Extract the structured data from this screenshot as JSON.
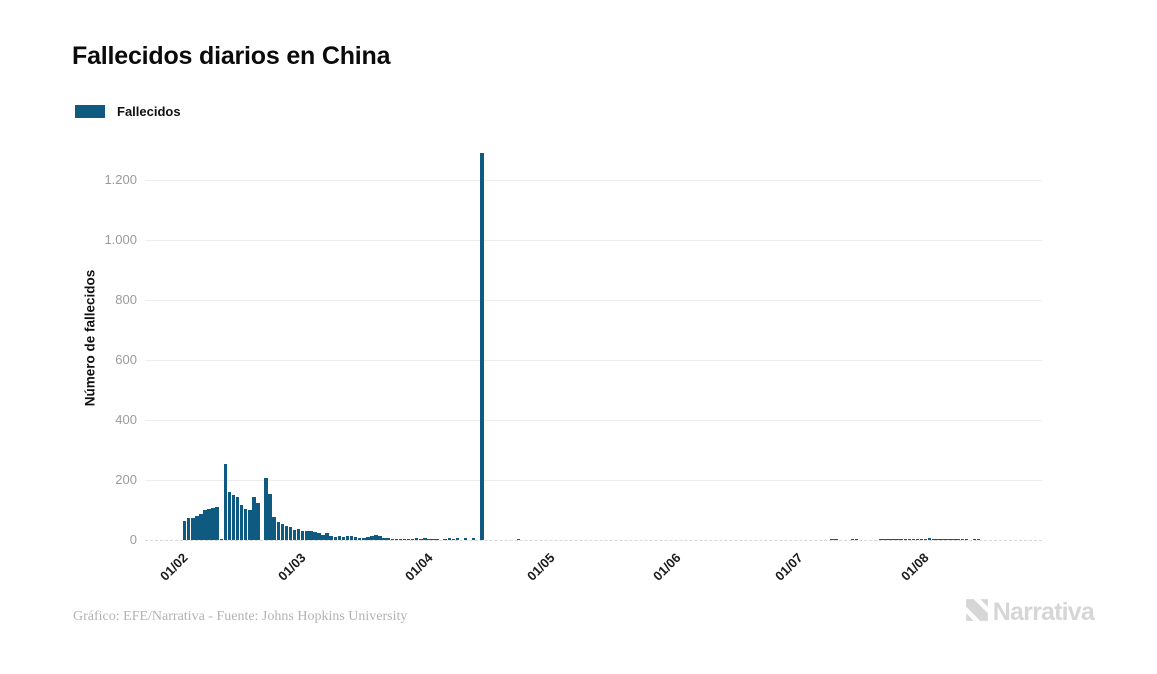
{
  "header": {
    "title": "Fallecidos diarios en China"
  },
  "legend": {
    "label": "Fallecidos"
  },
  "y_axis": {
    "title": "Número de fallecidos"
  },
  "footer": {
    "credit": "Gráfico: EFE/Narrativa - Fuente: Johns Hopkins University",
    "logo_text": "Narrativa"
  },
  "colors": {
    "bar": "#0f5a80",
    "grid": "#ededed",
    "zero_line": "#d8d8d8",
    "y_tick_label": "#9b9b9b",
    "x_tick_label": "#1a1a1a",
    "title": "#0b0b0b",
    "logo": "#d6d6d6"
  },
  "chart_data": {
    "type": "bar",
    "title": "Fallecidos diarios en China",
    "xlabel": "",
    "ylabel": "Número de fallecidos",
    "ylim": [
      0,
      1300
    ],
    "x_domain_dates": [
      "25/01/2020",
      "01/09/2020"
    ],
    "grid": true,
    "legend_position": "top-left",
    "y_ticks": [
      {
        "v": 0,
        "label": "0"
      },
      {
        "v": 200,
        "label": "200"
      },
      {
        "v": 400,
        "label": "400"
      },
      {
        "v": 600,
        "label": "600"
      },
      {
        "v": 800,
        "label": "800"
      },
      {
        "v": 1000,
        "label": "1.000"
      },
      {
        "v": 1200,
        "label": "1.200"
      }
    ],
    "x_ticks": [
      "01/02",
      "01/03",
      "01/04",
      "01/05",
      "01/06",
      "01/07",
      "01/08"
    ],
    "series": [
      {
        "name": "Fallecidos",
        "color": "#0f5a80",
        "points": [
          [
            "04/02",
            65
          ],
          [
            "05/02",
            72
          ],
          [
            "06/02",
            75
          ],
          [
            "07/02",
            80
          ],
          [
            "08/02",
            87
          ],
          [
            "09/02",
            100
          ],
          [
            "10/02",
            105
          ],
          [
            "11/02",
            108
          ],
          [
            "12/02",
            111
          ],
          [
            "13/02",
            5
          ],
          [
            "14/02",
            254
          ],
          [
            "15/02",
            160
          ],
          [
            "16/02",
            150
          ],
          [
            "17/02",
            142
          ],
          [
            "18/02",
            117
          ],
          [
            "19/02",
            102
          ],
          [
            "20/02",
            100
          ],
          [
            "21/02",
            142
          ],
          [
            "22/02",
            124
          ],
          [
            "23/02",
            0
          ],
          [
            "24/02",
            208
          ],
          [
            "25/02",
            152
          ],
          [
            "26/02",
            78
          ],
          [
            "27/02",
            61
          ],
          [
            "28/02",
            52
          ],
          [
            "29/02",
            47
          ],
          [
            "01/03",
            42
          ],
          [
            "02/03",
            35
          ],
          [
            "03/03",
            38
          ],
          [
            "04/03",
            31
          ],
          [
            "05/03",
            30
          ],
          [
            "06/03",
            29
          ],
          [
            "07/03",
            27
          ],
          [
            "08/03",
            23
          ],
          [
            "09/03",
            17
          ],
          [
            "10/03",
            22
          ],
          [
            "11/03",
            13
          ],
          [
            "12/03",
            11
          ],
          [
            "13/03",
            13
          ],
          [
            "14/03",
            10
          ],
          [
            "15/03",
            14
          ],
          [
            "16/03",
            13
          ],
          [
            "17/03",
            11
          ],
          [
            "18/03",
            8
          ],
          [
            "19/03",
            6
          ],
          [
            "20/03",
            10
          ],
          [
            "21/03",
            13
          ],
          [
            "22/03",
            18
          ],
          [
            "23/03",
            12
          ],
          [
            "24/03",
            7
          ],
          [
            "25/03",
            6
          ],
          [
            "26/03",
            5
          ],
          [
            "27/03",
            5
          ],
          [
            "28/03",
            5
          ],
          [
            "29/03",
            4
          ],
          [
            "30/03",
            3
          ],
          [
            "31/03",
            2
          ],
          [
            "01/04",
            7
          ],
          [
            "02/04",
            4
          ],
          [
            "03/04",
            6
          ],
          [
            "04/04",
            2
          ],
          [
            "05/04",
            3
          ],
          [
            "06/04",
            2
          ],
          [
            "08/04",
            2
          ],
          [
            "09/04",
            8
          ],
          [
            "10/04",
            3
          ],
          [
            "11/04",
            7
          ],
          [
            "13/04",
            8
          ],
          [
            "15/04",
            7
          ],
          [
            "17/04",
            1290
          ],
          [
            "26/04",
            1
          ],
          [
            "12/07",
            2
          ],
          [
            "13/07",
            1
          ],
          [
            "17/07",
            2
          ],
          [
            "18/07",
            1
          ],
          [
            "24/07",
            2
          ],
          [
            "25/07",
            2
          ],
          [
            "26/07",
            1
          ],
          [
            "27/07",
            3
          ],
          [
            "28/07",
            4
          ],
          [
            "29/07",
            3
          ],
          [
            "30/07",
            4
          ],
          [
            "31/07",
            3
          ],
          [
            "01/08",
            4
          ],
          [
            "02/08",
            5
          ],
          [
            "03/08",
            4
          ],
          [
            "04/08",
            5
          ],
          [
            "05/08",
            6
          ],
          [
            "06/08",
            5
          ],
          [
            "07/08",
            4
          ],
          [
            "08/08",
            3
          ],
          [
            "09/08",
            2
          ],
          [
            "10/08",
            4
          ],
          [
            "11/08",
            3
          ],
          [
            "12/08",
            2
          ],
          [
            "13/08",
            3
          ],
          [
            "14/08",
            2
          ],
          [
            "16/08",
            3
          ],
          [
            "17/08",
            2
          ]
        ]
      }
    ]
  }
}
